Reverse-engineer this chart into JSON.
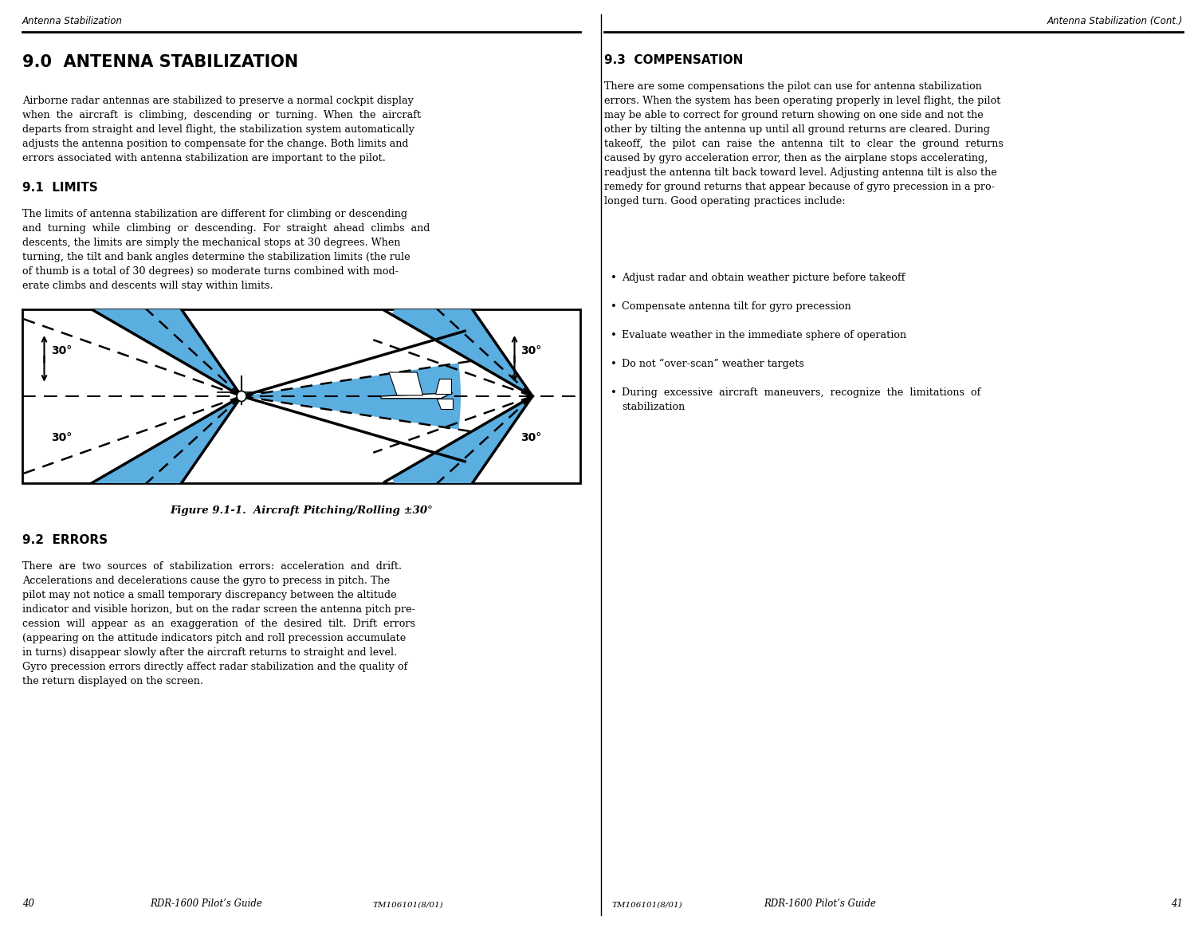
{
  "bg_color": "#ffffff",
  "left_header": "Antenna Stabilization",
  "right_header": "Antenna Stabilization (Cont.)",
  "left_page": "40",
  "right_page": "41",
  "left_guide": "RDR-1600 Pilot’s Guide",
  "right_guide": "RDR-1600 Pilot’s Guide",
  "tm_left": "TM106101(8/01)",
  "tm_right": "TM106101(8/01)",
  "section_90_title": "9.0  ANTENNA STABILIZATION",
  "section_90_text": "Airborne radar antennas are stabilized to preserve a normal cockpit display\nwhen  the  aircraft  is  climbing,  descending  or  turning.  When  the  aircraft\ndeparts from straight and level flight, the stabilization system automatically\nadjusts the antenna position to compensate for the change. Both limits and\nerrors associated with antenna stabilization are important to the pilot.",
  "section_91_title": "9.1  LIMITS",
  "section_91_text": "The limits of antenna stabilization are different for climbing or descending\nand  turning  while  climbing  or  descending.  For  straight  ahead  climbs  and\ndescents, the limits are simply the mechanical stops at 30 degrees. When\nturning, the tilt and bank angles determine the stabilization limits (the rule\nof thumb is a total of 30 degrees) so moderate turns combined with mod-\nerate climbs and descents will stay within limits.",
  "figure_caption": "Figure 9.1-1.  Aircraft Pitching/Rolling ±30°",
  "section_92_title": "9.2  ERRORS",
  "section_92_text": "There  are  two  sources  of  stabilization  errors:  acceleration  and  drift.\nAccelerations and decelerations cause the gyro to precess in pitch. The\npilot may not notice a small temporary discrepancy between the altitude\nindicator and visible horizon, but on the radar screen the antenna pitch pre-\ncession  will  appear  as  an  exaggeration  of  the  desired  tilt.  Drift  errors\n(appearing on the attitude indicators pitch and roll precession accumulate\nin turns) disappear slowly after the aircraft returns to straight and level.\nGyro precession errors directly affect radar stabilization and the quality of\nthe return displayed on the screen.",
  "section_93_title": "9.3  COMPENSATION",
  "section_93_text": "There are some compensations the pilot can use for antenna stabilization\nerrors. When the system has been operating properly in level flight, the pilot\nmay be able to correct for ground return showing on one side and not the\nother by tilting the antenna up until all ground returns are cleared. During\ntakeoff,  the  pilot  can  raise  the  antenna  tilt  to  clear  the  ground  returns\ncaused by gyro acceleration error, then as the airplane stops accelerating,\nreadjust the antenna tilt back toward level. Adjusting antenna tilt is also the\nremedy for ground returns that appear because of gyro precession in a pro-\nlonged turn. Good operating practices include:",
  "bullets": [
    "Adjust radar and obtain weather picture before takeoff",
    "Compensate antenna tilt for gyro precession",
    "Evaluate weather in the immediate sphere of operation",
    "Do not “over-scan” weather targets",
    "During  excessive  aircraft  maneuvers,  recognize  the  limitations  of\nstabilization"
  ],
  "blue_color": "#5baee0",
  "fig_bg": "#ffffff",
  "header_line_color": "#000000",
  "text_color": "#000000"
}
